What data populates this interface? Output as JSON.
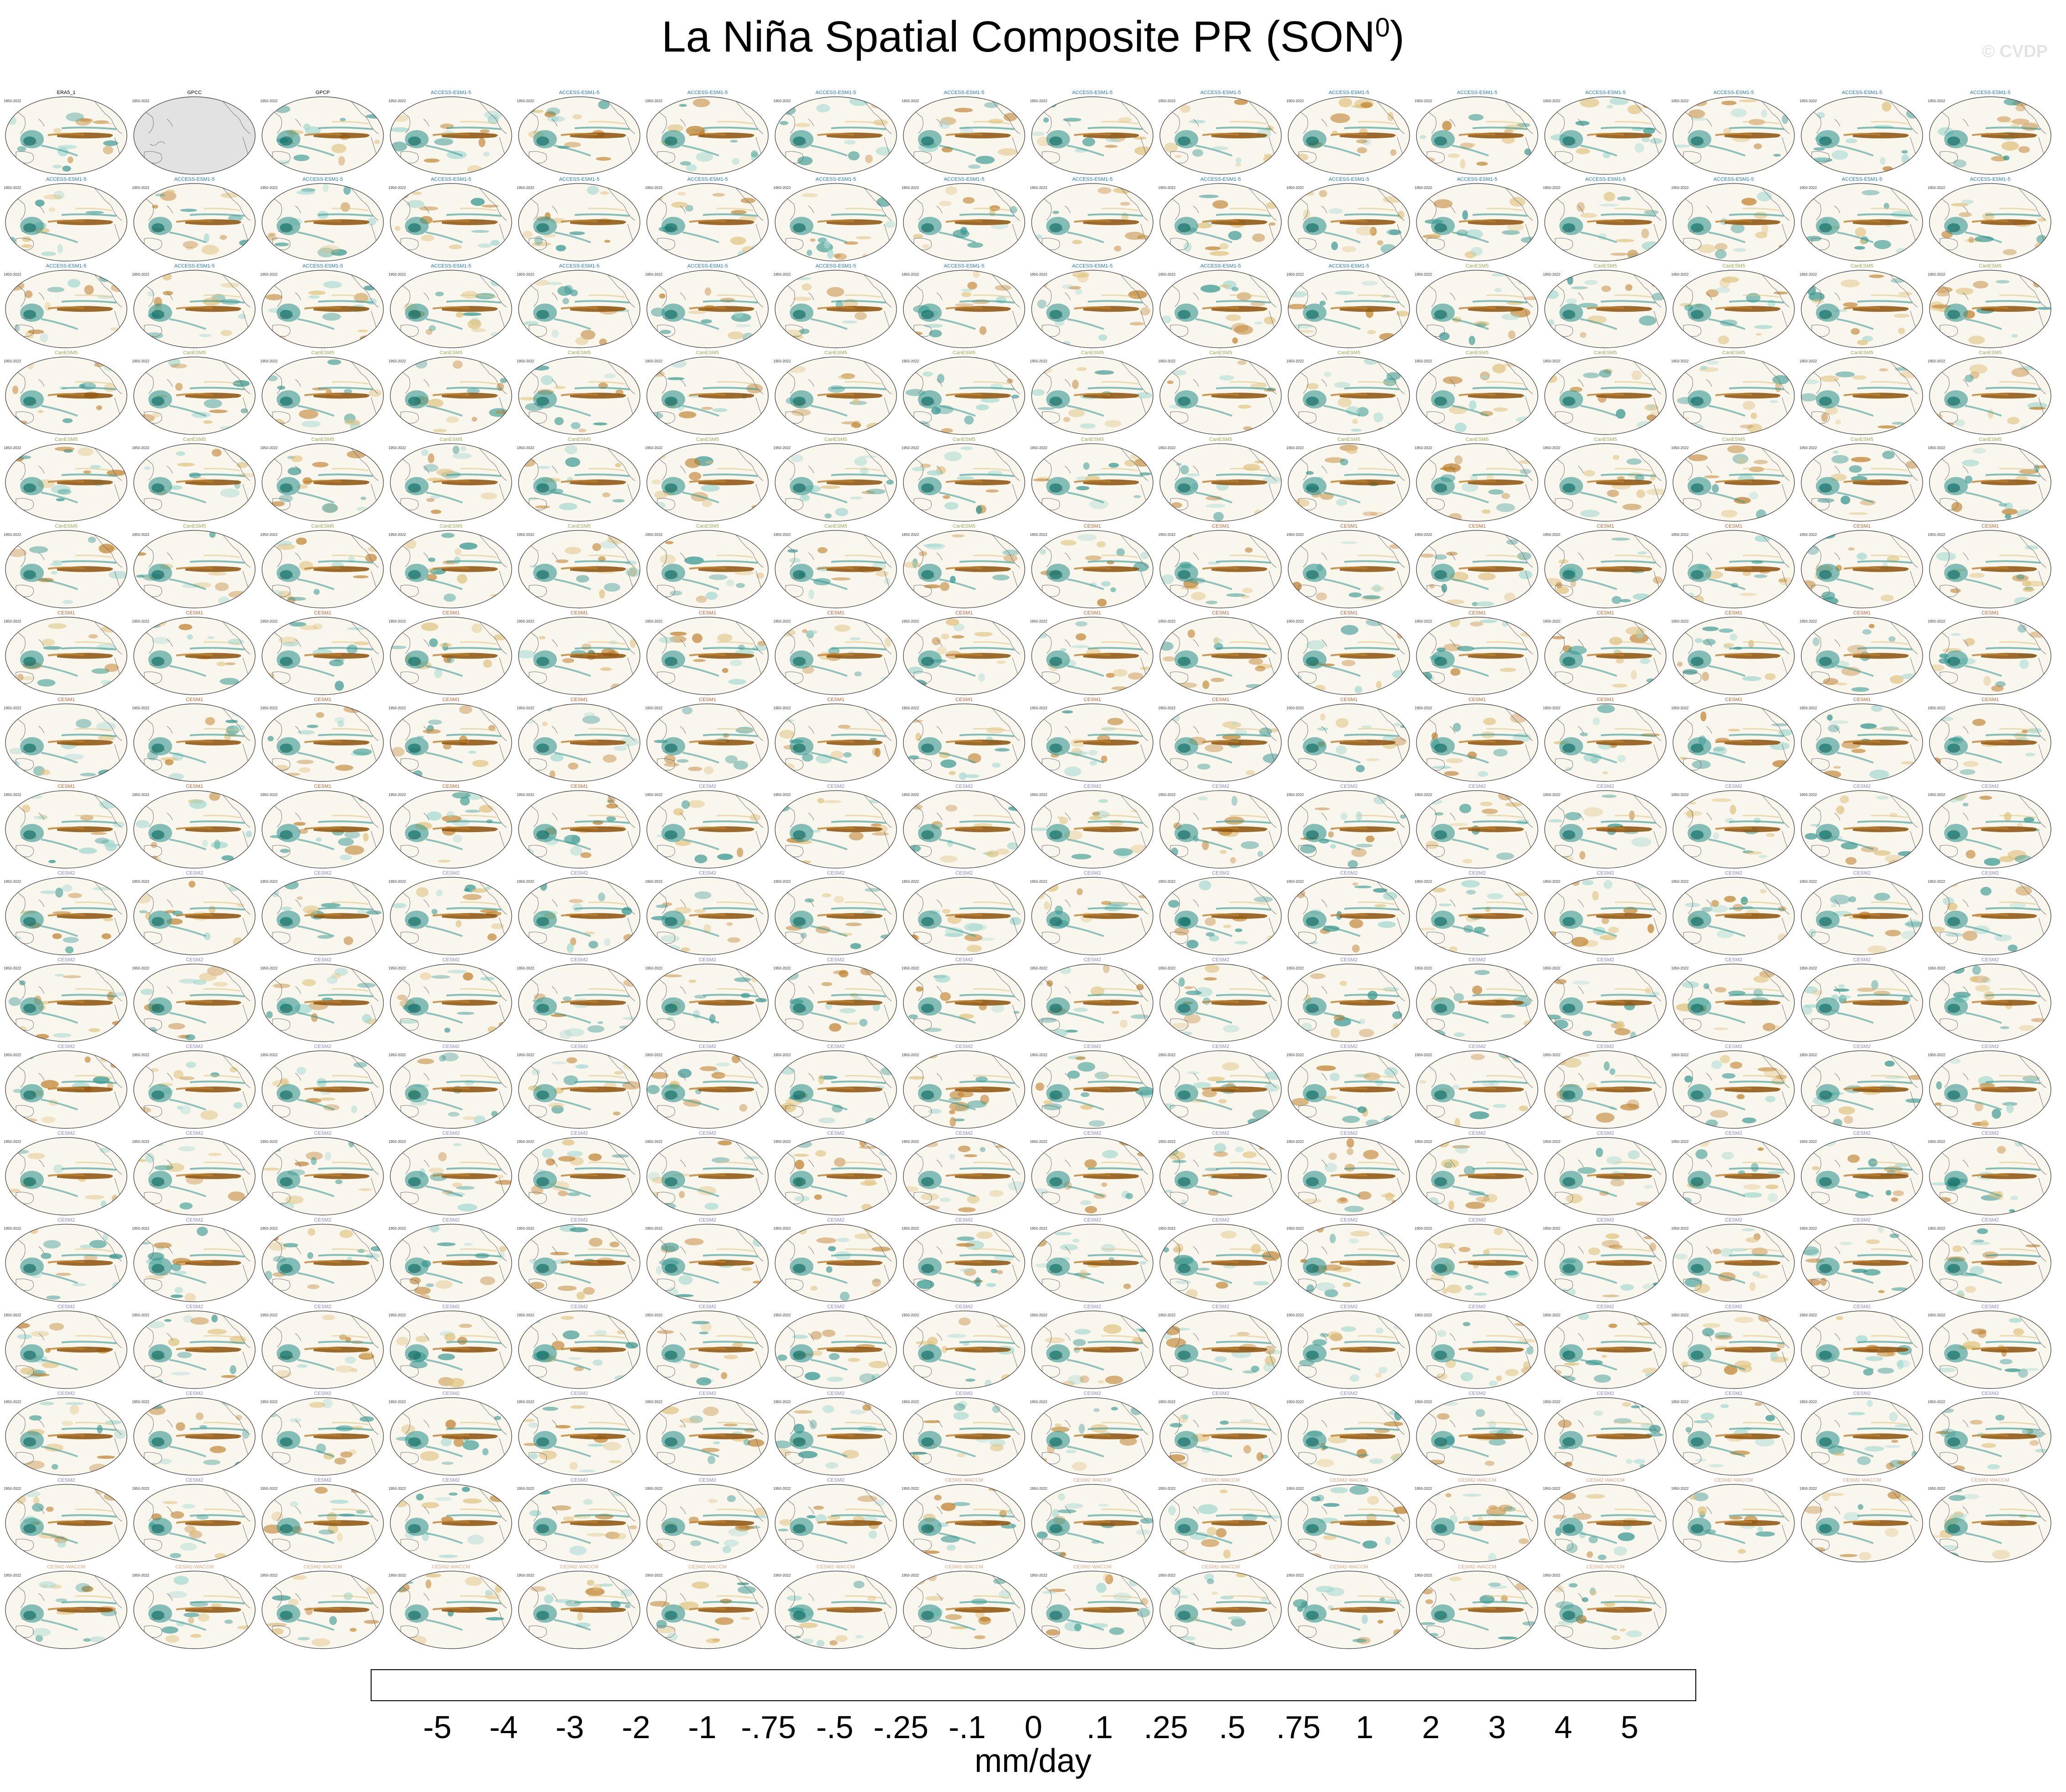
{
  "header": {
    "title": "La Niña Spatial Composite PR (SON",
    "title_sup": "0",
    "title_close": ")",
    "watermark": "© CVDP"
  },
  "panel_common": {
    "years": "1950-2022"
  },
  "panels_row1": [
    {
      "label": "ERA5_1",
      "color": "#000000",
      "missing": false
    },
    {
      "label": "GPCC",
      "color": "#000000",
      "missing": true
    },
    {
      "label": "GPCP",
      "color": "#000000",
      "missing": false
    }
  ],
  "model_groups": [
    {
      "name": "ACCESS-ESM1-5",
      "color": "#1f77b4"
    },
    {
      "name": "CanESM5",
      "color": "#9aa84a"
    },
    {
      "name": "CESM1",
      "color": "#c1602a"
    },
    {
      "name": "CESM2",
      "color": "#8f7fd0"
    },
    {
      "name": "CESM2-WACCM",
      "color": "#e3a27a"
    }
  ],
  "chart_data": {
    "type": "heatmap",
    "title": "La Niña Spatial Composite PR (SON0)",
    "grid": {
      "rows": 18,
      "cols": 16,
      "panels": 285
    },
    "colorbar": {
      "label": "mm/day",
      "levels": [
        "-5",
        "-4",
        "-3",
        "-2",
        "-1",
        "-.75",
        "-.5",
        "-.25",
        "-.1",
        "0",
        ".1",
        ".25",
        ".5",
        ".75",
        "1",
        "2",
        "3",
        "4",
        "5"
      ],
      "colors": [
        "#543005",
        "#6f3e0a",
        "#8c510a",
        "#a6661b",
        "#bf812d",
        "#cfa257",
        "#dfc27d",
        "#ecdca8",
        "#f6e8c3",
        "#f5f1e8",
        "#e6f1ee",
        "#c7eae5",
        "#a3d8cf",
        "#80cdc1",
        "#57b0a4",
        "#35978f",
        "#1c8075",
        "#01665e",
        "#014d41",
        "#003c30"
      ]
    }
  }
}
